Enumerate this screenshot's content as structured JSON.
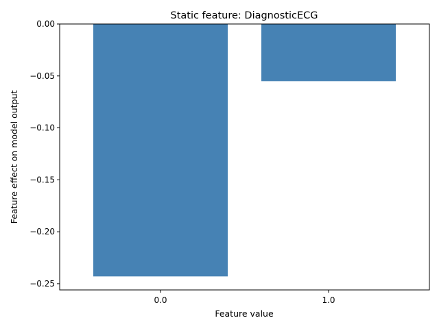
{
  "chart_data": {
    "type": "bar",
    "title": "Static feature: DiagnosticECG",
    "xlabel": "Feature value",
    "ylabel": "Feature effect on model output",
    "categories": [
      "0.0",
      "1.0"
    ],
    "values": [
      -0.243,
      -0.055
    ],
    "ylim": [
      -0.256,
      0.0
    ],
    "yticks": [
      0.0,
      -0.05,
      -0.1,
      -0.15,
      -0.2,
      -0.25
    ],
    "ytick_labels": [
      "0.00",
      "−0.05",
      "−0.10",
      "−0.15",
      "−0.20",
      "−0.25"
    ],
    "bar_color": "#4682b4",
    "grid": false,
    "legend": "none"
  }
}
